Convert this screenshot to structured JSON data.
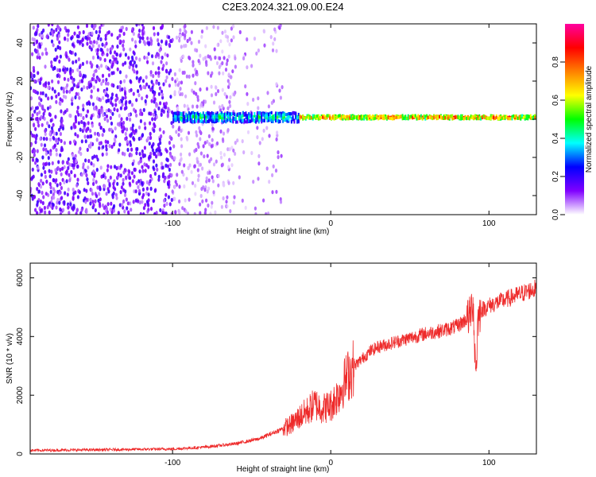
{
  "title": "C2E3.2024.321.09.00.E24",
  "chart_data": [
    {
      "type": "heatmap",
      "xlabel": "Height of straight line (km)",
      "ylabel": "Frequency (Hz)",
      "xlim": [
        -190,
        130
      ],
      "ylim": [
        -50,
        50
      ],
      "xticks": [
        -100,
        0,
        100
      ],
      "xtick_labels": [
        "-100",
        "0",
        "100"
      ],
      "yticks": [
        -40,
        -20,
        0,
        20,
        40
      ],
      "ytick_labels": [
        "-40",
        "-20",
        "0",
        "20",
        "40"
      ],
      "colorbar": {
        "label": "Normalized spectral amplitude",
        "range": [
          0,
          1
        ],
        "ticks": [
          0.0,
          0.2,
          0.4,
          0.6,
          0.8
        ],
        "tick_labels": [
          "0.0",
          "0.2",
          "0.4",
          "0.6",
          "0.8"
        ],
        "colors": [
          "#ffffff",
          "#8000ff",
          "#0000ff",
          "#00ffff",
          "#00ff00",
          "#ffff00",
          "#ff8000",
          "#ff0000",
          "#ff00a0"
        ]
      },
      "grid": false
    },
    {
      "type": "line",
      "xlabel": "Height of straight line (km)",
      "ylabel": "SNR (10 * v/v)",
      "xlim": [
        -190,
        130
      ],
      "ylim": [
        0,
        6500
      ],
      "xticks": [
        -100,
        0,
        100
      ],
      "xtick_labels": [
        "-100",
        "0",
        "100"
      ],
      "yticks": [
        0,
        2000,
        4000,
        6000
      ],
      "ytick_labels": [
        "0",
        "2000",
        "4000",
        "6000"
      ],
      "series": [
        {
          "color": "#ee2a2a",
          "x": [
            -190,
            -150,
            -100,
            -80,
            -60,
            -45,
            -35,
            -25,
            -20,
            -15,
            -10,
            -5,
            0,
            5,
            10,
            15,
            20,
            25,
            30,
            40,
            50,
            60,
            70,
            80,
            88,
            90,
            91,
            92,
            93,
            95,
            100,
            110,
            120,
            130
          ],
          "y": [
            120,
            140,
            170,
            230,
            350,
            520,
            750,
            1000,
            1250,
            1450,
            1700,
            1550,
            1650,
            2050,
            2600,
            3000,
            3250,
            3500,
            3650,
            3800,
            3950,
            4100,
            4200,
            4350,
            4700,
            5300,
            3500,
            2900,
            4600,
            4900,
            5050,
            5250,
            5450,
            5650
          ]
        }
      ],
      "grid": false
    }
  ]
}
